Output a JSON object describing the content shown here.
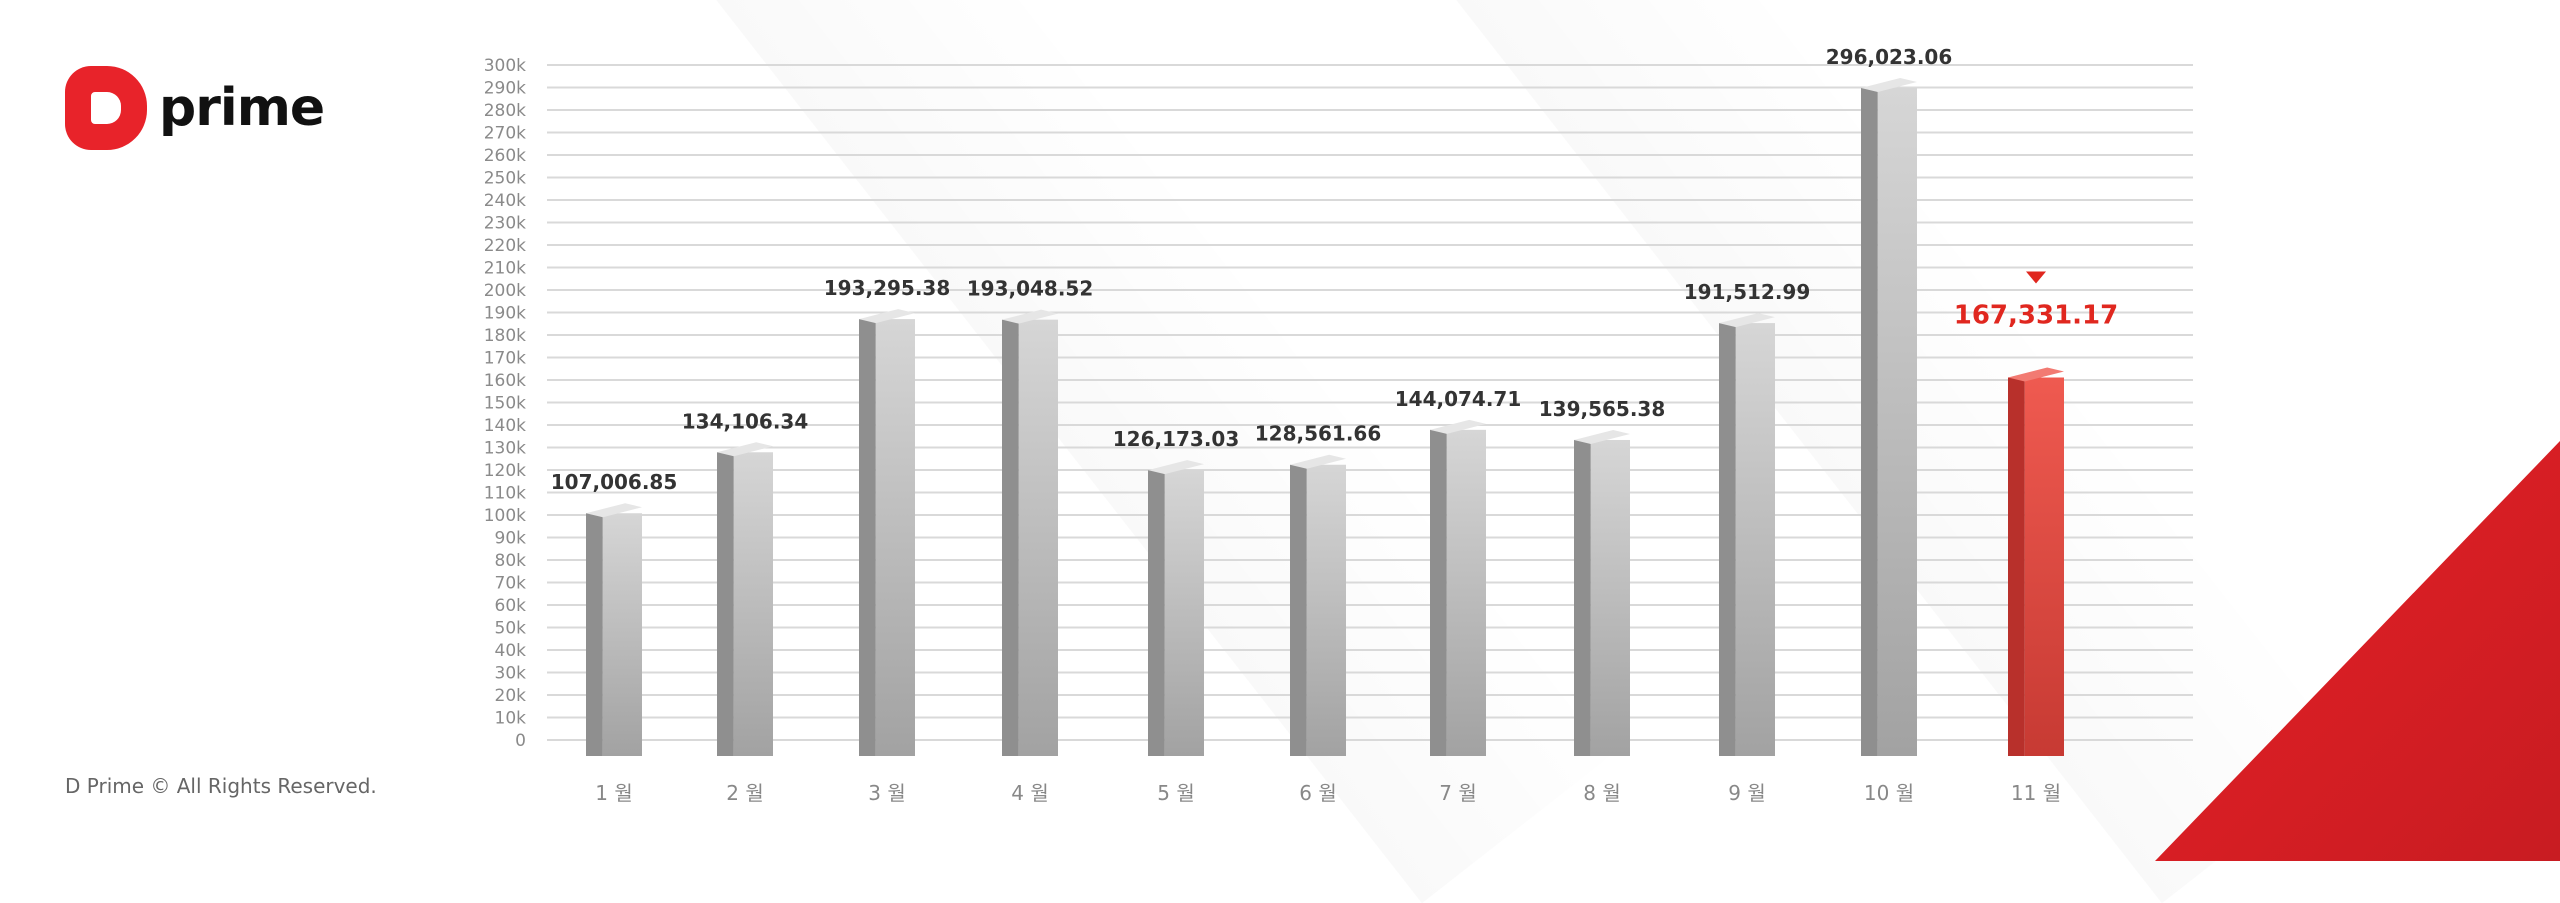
{
  "brand": {
    "logo_text": "prime",
    "footer": "D Prime © All Rights Reserved."
  },
  "colors": {
    "bar": "#a9a9a9",
    "highlight": "#e8322f",
    "accent": "#e31e24"
  },
  "chart_data": {
    "type": "bar",
    "title": "",
    "xlabel": "",
    "ylabel": "",
    "ylim": [
      0,
      300000
    ],
    "grid": true,
    "yticks": [
      "0",
      "10k",
      "20k",
      "30k",
      "40k",
      "50k",
      "60k",
      "70k",
      "80k",
      "90k",
      "100k",
      "110k",
      "120k",
      "130k",
      "140k",
      "150k",
      "160k",
      "170k",
      "180k",
      "190k",
      "200k",
      "210k",
      "220k",
      "230k",
      "240k",
      "250k",
      "260k",
      "270k",
      "280k",
      "290k",
      "300k"
    ],
    "categories": [
      "1 월",
      "2 월",
      "3 월",
      "4 월",
      "5 월",
      "6 월",
      "7 월",
      "8 월",
      "9 월",
      "10 월",
      "11 월"
    ],
    "values": [
      107006.85,
      134106.34,
      193295.38,
      193048.52,
      126173.03,
      128561.66,
      144074.71,
      139565.38,
      191512.99,
      296023.06,
      167331.17
    ],
    "data_labels": [
      "107,006.85",
      "134,106.34",
      "193,295.38",
      "193,048.52",
      "126,173.03",
      "128,561.66",
      "144,074.71",
      "139,565.38",
      "191,512.99",
      "296,023.06",
      "167,331.17"
    ],
    "highlight_index": 10
  }
}
